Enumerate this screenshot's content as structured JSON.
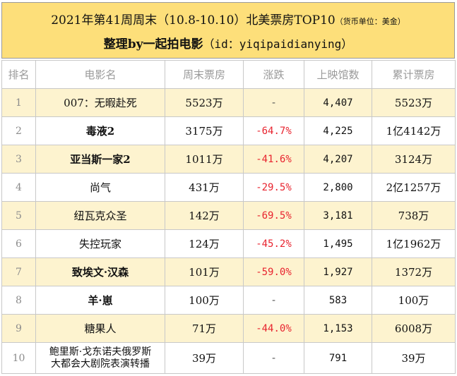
{
  "header": {
    "title_main": "2021年第41周周末（10.8-10.10）北美票房TOP10",
    "title_unit": "（货币单位：美金）",
    "subtitle_bold": "整理by一起拍电影",
    "subtitle_id": "（id：yiqipaidianying）"
  },
  "table": {
    "columns": [
      "排名",
      "电影名",
      "周末票房",
      "涨跌",
      "上映馆数",
      "累计票房"
    ],
    "rows": [
      {
        "rank": "1",
        "title": "007：无暇赴死",
        "weekend": "5523万",
        "change": "-",
        "theaters": "4,407",
        "total": "5523万"
      },
      {
        "rank": "2",
        "title": "毒液2",
        "weekend": "3175万",
        "change": "-64.7%",
        "theaters": "4,225",
        "total": "1亿4142万"
      },
      {
        "rank": "3",
        "title": "亚当斯一家2",
        "weekend": "1011万",
        "change": "-41.6%",
        "theaters": "4,207",
        "total": "3124万"
      },
      {
        "rank": "4",
        "title": "尚气",
        "weekend": "431万",
        "change": "-29.5%",
        "theaters": "2,800",
        "total": "2亿1257万"
      },
      {
        "rank": "5",
        "title": "纽瓦克众圣",
        "weekend": "142万",
        "change": "-69.5%",
        "theaters": "3,181",
        "total": "738万"
      },
      {
        "rank": "6",
        "title": "失控玩家",
        "weekend": "124万",
        "change": "-45.2%",
        "theaters": "1,495",
        "total": "1亿1962万"
      },
      {
        "rank": "7",
        "title": "致埃文·汉森",
        "weekend": "101万",
        "change": "-59.0%",
        "theaters": "1,927",
        "total": "1372万"
      },
      {
        "rank": "8",
        "title": "羊·崽",
        "weekend": "100万",
        "change": "-",
        "theaters": "583",
        "total": "100万"
      },
      {
        "rank": "9",
        "title": "糖果人",
        "weekend": "71万",
        "change": "-44.0%",
        "theaters": "1,153",
        "total": "6008万"
      },
      {
        "rank": "10",
        "title_line1": "鲍里斯·戈东诺夫俄罗斯",
        "title_line2": "大都会大剧院表演转播",
        "weekend": "39万",
        "change": "-",
        "theaters": "791",
        "total": "39万"
      }
    ]
  },
  "watermark": {
    "text": "一起拍电影",
    "color": "#f0c020"
  }
}
